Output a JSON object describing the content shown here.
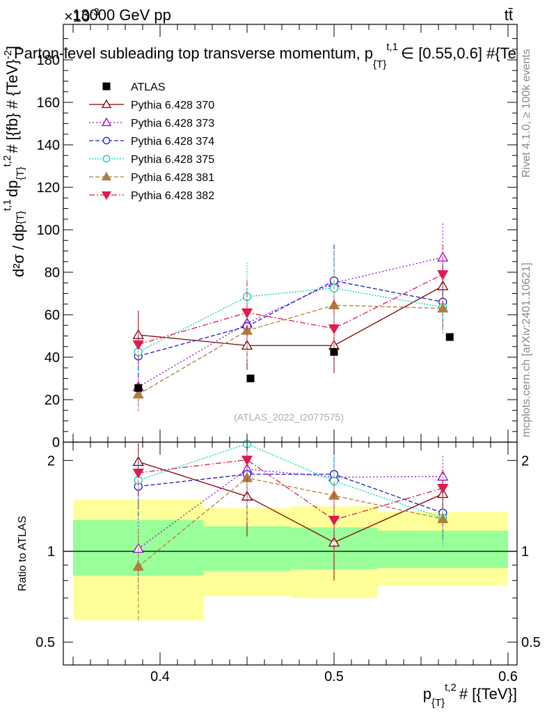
{
  "header": {
    "energy_label": "13000 GeV pp",
    "process_label": "tt̄",
    "exponent_label": "×10",
    "exponent_sup": "-3",
    "title": "Parton-level subleading top transverse momentum, p",
    "title_tail": "∈ [0.55,0.6] #{Te",
    "title_sub": "{T}",
    "title_sup": "t,1",
    "ylabel_main": "d²σ / dp",
    "ylabel_tail": "dp",
    "ylabel_end": "# [{fb} # {TeV}",
    "ylabel_sup_end": "-2",
    "ylabel_close": "]",
    "side_rivet": "Rivet 4.1.0, ≥ 100k events",
    "side_mcplots": "mcplots.cern.ch [arXiv:2401.10621]",
    "watermark": "(ATLAS_2022_I2077575)",
    "ratio_ylabel": "Ratio to ATLAS",
    "xlabel_main": "p",
    "xlabel_sub": "{T}",
    "xlabel_sup": "t,2",
    "xlabel_tail": "# [{TeV}]"
  },
  "colors": {
    "data": "#000000",
    "band_inner": "#99ff99",
    "band_outer": "#ffff99"
  },
  "chart_data": {
    "type": "line",
    "xlim": [
      0.345,
      0.6
    ],
    "main_ylim": [
      0,
      198
    ],
    "ratio_ylim": [
      0.42,
      2.3
    ],
    "x_ticks": [
      0.4,
      0.5,
      0.6
    ],
    "x_tick_labels": [
      "0.4",
      "0.5",
      "0.6"
    ],
    "main_y_ticks": [
      0,
      20,
      40,
      60,
      80,
      100,
      120,
      140,
      160,
      180
    ],
    "main_y_tick_labels": [
      "0",
      "20",
      "40",
      "60",
      "80",
      "100",
      "120",
      "140",
      "160",
      "180"
    ],
    "ratio_y_ticks": [
      0.5,
      1,
      2
    ],
    "ratio_y_tick_labels": [
      "0.5",
      "1",
      "2"
    ],
    "data": {
      "name": "ATLAS",
      "x": [
        0.3875,
        0.45,
        0.5,
        0.5625
      ],
      "x_edges": [
        [
          0.35,
          0.425
        ],
        [
          0.425,
          0.475
        ],
        [
          0.475,
          0.525
        ],
        [
          0.525,
          0.6
        ]
      ],
      "y": [
        25.5,
        30,
        42.5,
        49.5
      ],
      "ratio_band_inner": [
        [
          0.83,
          1.27
        ],
        [
          0.86,
          1.21
        ],
        [
          0.87,
          1.2
        ],
        [
          0.88,
          1.17
        ]
      ],
      "ratio_band_outer": [
        [
          0.59,
          1.48
        ],
        [
          0.71,
          1.39
        ],
        [
          0.7,
          1.41
        ],
        [
          0.77,
          1.35
        ]
      ]
    },
    "series": [
      {
        "name": "Pythia 6.428 370",
        "color": "#800000",
        "dash": "",
        "marker": "tri-open",
        "x": [
          0.3875,
          0.45,
          0.5,
          0.5625
        ],
        "values": [
          50.5,
          45.5,
          45.5,
          73.5
        ],
        "err": [
          11.5,
          11.5,
          13,
          10
        ],
        "ratio": [
          1.98,
          1.52,
          1.07,
          1.55
        ],
        "ratio_err": [
          0.45,
          0.4,
          0.27,
          0.22
        ]
      },
      {
        "name": "Pythia 6.428 373",
        "color": "#9400d3",
        "dash": "2,3",
        "marker": "tri-open",
        "x": [
          0.3875,
          0.45,
          0.5,
          0.5625
        ],
        "values": [
          26,
          56,
          75,
          87
        ],
        "err": [
          10,
          18,
          18,
          16
        ],
        "ratio": [
          1.02,
          1.87,
          1.76,
          1.77
        ],
        "ratio_err": [
          0.3,
          0.6,
          0.4,
          0.3
        ]
      },
      {
        "name": "Pythia 6.428 374",
        "color": "#1a1acc",
        "dash": "6,3",
        "marker": "circ-open",
        "x": [
          0.3875,
          0.45,
          0.5,
          0.5625
        ],
        "values": [
          40.5,
          54.5,
          76,
          66
        ],
        "err": [
          10,
          17,
          17,
          13
        ],
        "ratio": [
          1.64,
          1.8,
          1.8,
          1.34
        ],
        "ratio_err": [
          0.35,
          0.5,
          0.35,
          0.25
        ]
      },
      {
        "name": "Pythia 6.428 375",
        "color": "#00cfbf",
        "dash": "2,2",
        "marker": "circ-open",
        "x": [
          0.3875,
          0.45,
          0.5,
          0.5625
        ],
        "values": [
          42.5,
          68.5,
          72.5,
          63.5
        ],
        "err": [
          10,
          16,
          17,
          12
        ],
        "ratio": [
          1.72,
          2.27,
          1.71,
          1.29
        ],
        "ratio_err": [
          0.4,
          0.55,
          0.4,
          0.25
        ]
      },
      {
        "name": "Pythia 6.428 381",
        "color": "#b07d3e",
        "dash": "6,3",
        "marker": "tri-fill",
        "x": [
          0.3875,
          0.45,
          0.5,
          0.5625
        ],
        "values": [
          22.5,
          52.5,
          64.5,
          63
        ],
        "err": [
          8,
          15,
          15,
          12
        ],
        "ratio": [
          0.89,
          1.75,
          1.53,
          1.28
        ],
        "ratio_err": [
          0.3,
          0.5,
          0.35,
          0.22
        ]
      },
      {
        "name": "Pythia 6.428 382",
        "color": "#e0194f",
        "dash": "8,3,2,3",
        "marker": "tri-down-fill",
        "x": [
          0.3875,
          0.45,
          0.5,
          0.5625
        ],
        "values": [
          46,
          61,
          53.5,
          79
        ],
        "err": [
          11,
          15,
          14,
          14
        ],
        "ratio": [
          1.82,
          2.01,
          1.27,
          1.62
        ],
        "ratio_err": [
          0.4,
          0.5,
          0.3,
          0.25
        ]
      }
    ]
  }
}
